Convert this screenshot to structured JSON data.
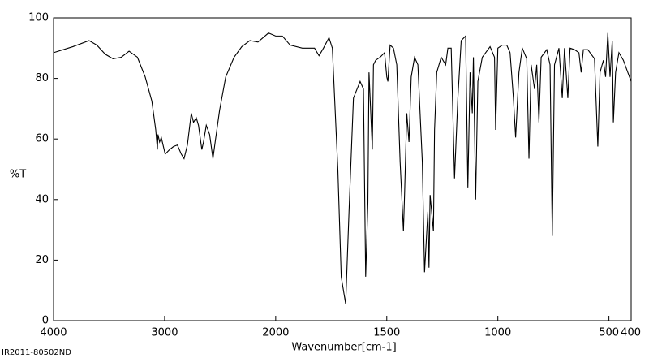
{
  "chart_data": {
    "type": "line",
    "x_label": "Wavenumber[cm-1]",
    "y_label": "%T",
    "footnote": "IR2011-80502ND",
    "color": "#000000",
    "xlim": [
      4000,
      400
    ],
    "ylim": [
      0,
      100
    ],
    "xticks": [
      4000,
      3000,
      2000,
      1500,
      1000,
      500,
      400
    ],
    "yticks": [
      0,
      20,
      40,
      60,
      80,
      100
    ],
    "x_scale_break": 2000,
    "x": [
      4000,
      3825,
      3680,
      3610,
      3535,
      3465,
      3390,
      3320,
      3245,
      3175,
      3115,
      3080,
      3065,
      3060,
      3045,
      3030,
      2995,
      2955,
      2920,
      2885,
      2850,
      2825,
      2795,
      2760,
      2740,
      2715,
      2695,
      2665,
      2650,
      2625,
      2595,
      2565,
      2545,
      2505,
      2450,
      2375,
      2305,
      2232,
      2160,
      2065,
      2000,
      1970,
      1935,
      1880,
      1825,
      1805,
      1785,
      1760,
      1745,
      1720,
      1705,
      1685,
      1670,
      1650,
      1620,
      1605,
      1595,
      1585,
      1580,
      1565,
      1560,
      1550,
      1530,
      1510,
      1500,
      1495,
      1485,
      1470,
      1455,
      1440,
      1425,
      1420,
      1410,
      1400,
      1390,
      1375,
      1360,
      1340,
      1330,
      1315,
      1310,
      1305,
      1290,
      1285,
      1275,
      1255,
      1235,
      1225,
      1210,
      1195,
      1180,
      1165,
      1145,
      1135,
      1125,
      1115,
      1110,
      1100,
      1090,
      1070,
      1055,
      1035,
      1015,
      1010,
      1000,
      980,
      960,
      945,
      930,
      920,
      905,
      890,
      870,
      860,
      850,
      835,
      825,
      815,
      805,
      780,
      765,
      755,
      745,
      725,
      710,
      700,
      685,
      675,
      655,
      635,
      625,
      615,
      595,
      565,
      550,
      540,
      525,
      515,
      505,
      495,
      485,
      480,
      470,
      455,
      435,
      415,
      400
    ],
    "values": [
      88.5,
      90.5,
      92.5,
      91,
      88,
      86.5,
      87,
      89,
      87,
      80.5,
      72.5,
      63,
      56.5,
      61.5,
      59,
      60.5,
      55,
      56.5,
      57.5,
      58,
      55,
      53.5,
      58,
      68.5,
      65.5,
      67,
      64.5,
      56.5,
      59,
      64.5,
      61.5,
      53.5,
      59,
      69.5,
      80.5,
      87,
      90.5,
      92.5,
      92,
      95,
      94,
      94,
      91,
      90,
      90,
      87.5,
      90,
      93.5,
      90,
      49.5,
      14.5,
      5.5,
      36,
      73.5,
      79,
      76.5,
      14.5,
      39,
      82,
      56.5,
      84.5,
      86,
      87,
      88.5,
      80.5,
      79,
      91,
      90,
      84.5,
      52.5,
      29.5,
      41.5,
      68.5,
      59,
      80.5,
      87,
      84.5,
      52.5,
      16,
      36,
      17.5,
      41.5,
      29.5,
      63,
      82,
      87,
      84.5,
      90,
      90,
      47,
      73.5,
      92.5,
      94,
      44,
      82,
      68.5,
      87,
      40,
      79,
      87,
      88.5,
      90.5,
      87,
      63,
      90,
      91,
      91,
      88.5,
      73.5,
      60.5,
      82,
      90,
      86.5,
      53.5,
      84.5,
      76.5,
      84.5,
      65.5,
      87,
      89.5,
      84.5,
      28,
      84.5,
      90,
      73.5,
      90,
      73.5,
      90,
      89.5,
      88.5,
      82,
      89.5,
      89.5,
      86.5,
      57.5,
      82,
      86,
      80.5,
      95,
      80.5,
      92.5,
      65.5,
      82,
      88.5,
      86,
      82,
      79
    ]
  }
}
